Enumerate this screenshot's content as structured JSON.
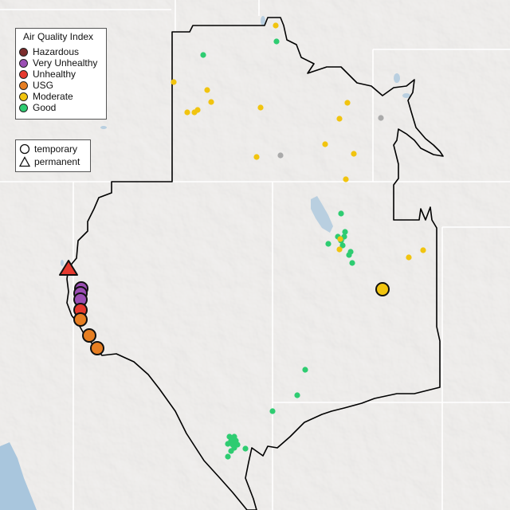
{
  "legend": {
    "title": "Air Quality Index",
    "categories": [
      {
        "label": "Hazardous",
        "color": "#7b2c2c"
      },
      {
        "label": "Very Unhealthy",
        "color": "#9b4fb4"
      },
      {
        "label": "Unhealthy",
        "color": "#e63a2f"
      },
      {
        "label": "USG",
        "color": "#e67e22"
      },
      {
        "label": "Moderate",
        "color": "#f1c40f"
      },
      {
        "label": "Good",
        "color": "#2ecc71"
      }
    ],
    "types": [
      {
        "label": "temporary",
        "icon": "circle-icon"
      },
      {
        "label": "permanent",
        "icon": "triangle-icon"
      }
    ]
  },
  "colors": {
    "land": "#e6e4e2",
    "water": "#a9c6dd",
    "border": "#000000",
    "state_line": "#ffffff",
    "no_data": "#aaaaaa"
  }
}
